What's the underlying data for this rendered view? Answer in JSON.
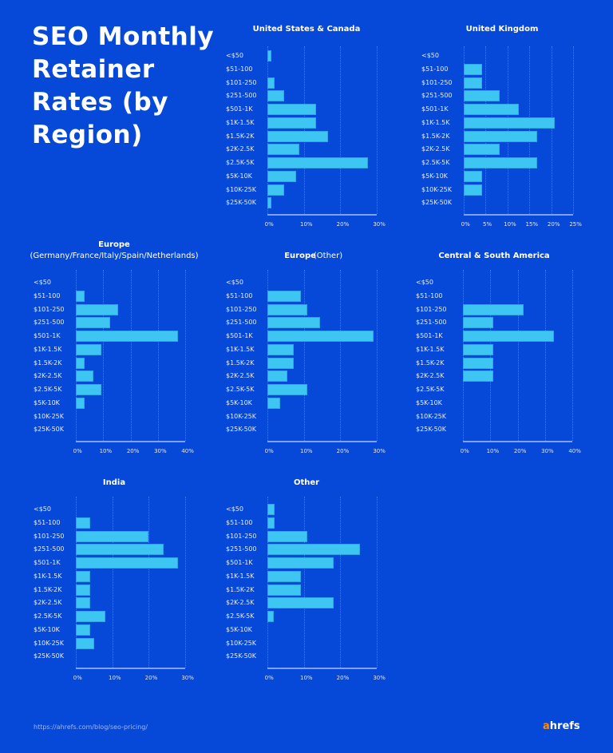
{
  "title": "SEO Monthly Retainer Rates (by Region)",
  "footer": {
    "url": "https://ahrefs.com/blog/seo-pricing/",
    "logo": "ahrefs"
  },
  "colors": {
    "background": "#0649d8",
    "bar": "#3ec6f2",
    "logo_accent": "#ff8a00"
  },
  "chart_data": [
    {
      "type": "bar",
      "orientation": "horizontal",
      "title": "United States & Canada",
      "subtitle": "",
      "categories": [
        "<$50",
        "$51-100",
        "$101-250",
        "$251-500",
        "$501-1K",
        "$1K-1.5K",
        "$1.5K-2K",
        "$2K-2.5K",
        "$2.5K-5K",
        "$5K-10K",
        "$10K-25K",
        "$25K-50K"
      ],
      "values": [
        1.2,
        0,
        2.0,
        4.5,
        13.3,
        13.3,
        16.7,
        8.8,
        27.7,
        7.8,
        4.5,
        1.2
      ],
      "xlim": [
        0,
        30
      ],
      "ticks": [
        "0%",
        "10%",
        "20%",
        "30%"
      ],
      "grid": true
    },
    {
      "type": "bar",
      "orientation": "horizontal",
      "title": "United Kingdom",
      "subtitle": "",
      "categories": [
        "<$50",
        "$51-100",
        "$101-250",
        "$251-500",
        "$501-1K",
        "$1K-1.5K",
        "$1.5K-2K",
        "$2K-2.5K",
        "$2.5K-5K",
        "$5K-10K",
        "$10K-25K",
        "$25K-50K"
      ],
      "values": [
        0,
        4.2,
        4.2,
        8.3,
        12.5,
        20.8,
        16.7,
        8.3,
        16.7,
        4.2,
        4.2,
        0
      ],
      "xlim": [
        0,
        25
      ],
      "ticks": [
        "0%",
        "5%",
        "10%",
        "15%",
        "20%",
        "25%"
      ],
      "grid": true
    },
    {
      "type": "bar",
      "orientation": "horizontal",
      "title": "Europe",
      "subtitle": "(Germany/France/Italy/Spain/Netherlands)",
      "categories": [
        "<$50",
        "$51-100",
        "$101-250",
        "$251-500",
        "$501-1K",
        "$1K-1.5K",
        "$1.5K-2K",
        "$2K-2.5K",
        "$2.5K-5K",
        "$5K-10K",
        "$10K-25K",
        "$25K-50K"
      ],
      "values": [
        0,
        3.1,
        15.6,
        12.5,
        37.5,
        9.4,
        3.1,
        6.3,
        9.4,
        3.1,
        0,
        0
      ],
      "xlim": [
        0,
        40
      ],
      "ticks": [
        "0%",
        "10%",
        "20%",
        "30%",
        "40%"
      ],
      "grid": true
    },
    {
      "type": "bar",
      "orientation": "horizontal",
      "title": "Europe",
      "subtitle": "(Other)",
      "categories": [
        "<$50",
        "$51-100",
        "$101-250",
        "$251-500",
        "$501-1K",
        "$1K-1.5K",
        "$1.5K-2K",
        "$2K-2.5K",
        "$2.5K-5K",
        "$5K-10K",
        "$10K-25K",
        "$25K-50K"
      ],
      "values": [
        0,
        9.1,
        10.9,
        14.5,
        29.1,
        7.3,
        7.3,
        5.5,
        10.9,
        3.6,
        0,
        0
      ],
      "xlim": [
        0,
        30
      ],
      "ticks": [
        "0%",
        "10%",
        "20%",
        "30%"
      ],
      "grid": true
    },
    {
      "type": "bar",
      "orientation": "horizontal",
      "title": "Central & South America",
      "subtitle": "",
      "categories": [
        "<$50",
        "$51-100",
        "$101-250",
        "$251-500",
        "$501-1K",
        "$1K-1.5K",
        "$1.5K-2K",
        "$2K-2.5K",
        "$2.5K-5K",
        "$5K-10K",
        "$10K-25K",
        "$25K-50K"
      ],
      "values": [
        0,
        0,
        22.2,
        11.1,
        33.3,
        11.1,
        11.1,
        11.1,
        0,
        0,
        0,
        0
      ],
      "xlim": [
        0,
        40
      ],
      "ticks": [
        "0%",
        "10%",
        "20%",
        "30%",
        "40%"
      ],
      "grid": true
    },
    {
      "type": "bar",
      "orientation": "horizontal",
      "title": "India",
      "subtitle": "",
      "categories": [
        "<$50",
        "$51-100",
        "$101-250",
        "$251-500",
        "$501-1K",
        "$1K-1.5K",
        "$1.5K-2K",
        "$2K-2.5K",
        "$2.5K-5K",
        "$5K-10K",
        "$10K-25K",
        "$25K-50K"
      ],
      "values": [
        0,
        3.9,
        19.9,
        24.1,
        28.0,
        3.9,
        3.9,
        3.9,
        8.2,
        3.9,
        5.0,
        0
      ],
      "xlim": [
        0,
        30
      ],
      "ticks": [
        "0%",
        "10%",
        "20%",
        "30%"
      ],
      "grid": true
    },
    {
      "type": "bar",
      "orientation": "horizontal",
      "title": "Other",
      "subtitle": "",
      "categories": [
        "<$50",
        "$51-100",
        "$101-250",
        "$251-500",
        "$501-1K",
        "$1K-1.5K",
        "$1.5K-2K",
        "$2K-2.5K",
        "$2.5K-5K",
        "$5K-10K",
        "$10K-25K",
        "$25K-50K"
      ],
      "values": [
        1.9,
        1.9,
        10.9,
        25.5,
        18.2,
        9.1,
        9.1,
        18.2,
        1.8,
        0,
        0,
        0
      ],
      "xlim": [
        0,
        30
      ],
      "ticks": [
        "0%",
        "10%",
        "20%",
        "30%"
      ],
      "grid": true
    }
  ]
}
